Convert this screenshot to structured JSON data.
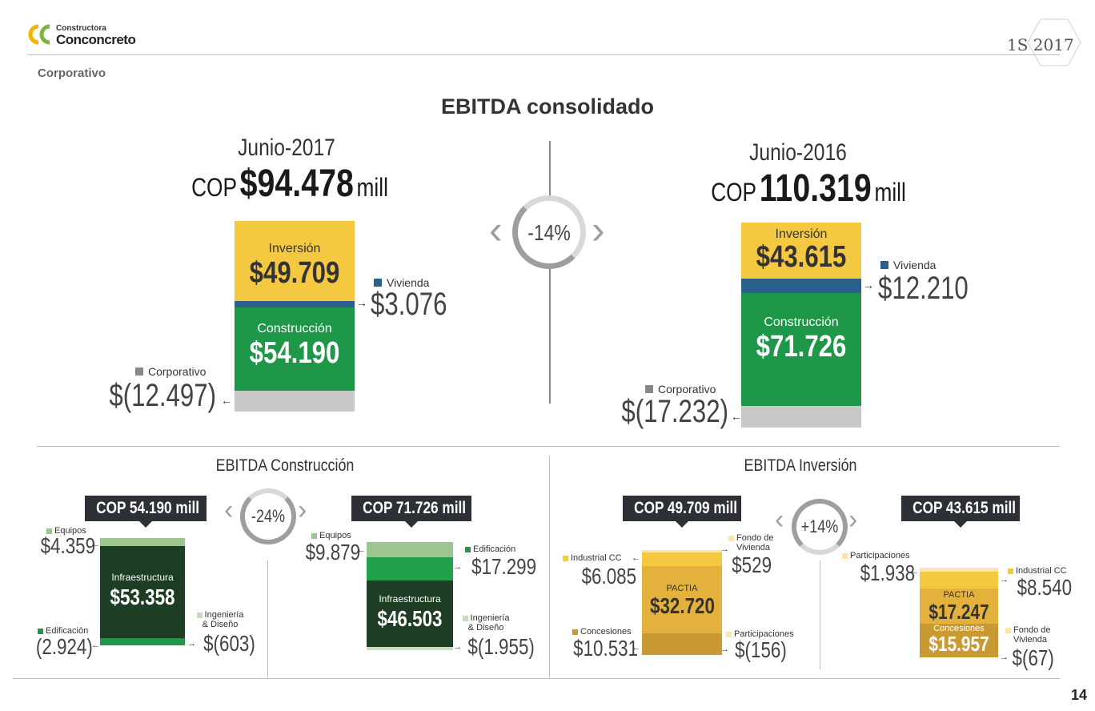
{
  "header": {
    "logo_line1": "Constructora",
    "logo_line2": "Conconcreto",
    "period": "1S 2017",
    "section": "Corporativo",
    "page_number": "14"
  },
  "title": "EBITDA consolidado",
  "colors": {
    "inversion": "#f5c842",
    "vivienda": "#2b5f8c",
    "construccion": "#1e9748",
    "corporativo": "#c8c8c8",
    "dark_green": "#1d3d24",
    "light_green": "#9cc590",
    "pactia": "#e3b13c",
    "concesiones": "#c99a34",
    "box_dark": "#2d3137",
    "ring": "#9e9e9e"
  },
  "top": {
    "left": {
      "period": "Junio-2017",
      "cop_prefix": "COP",
      "amount": "$94.478",
      "unit": "mill",
      "inversion_label": "Inversión",
      "inversion_value": "$49.709",
      "construccion_label": "Construcción",
      "construccion_value": "$54.190",
      "vivienda_label": "Vivienda",
      "vivienda_value": "$3.076",
      "corporativo_label": "Corporativo",
      "corporativo_value": "$(12.497)"
    },
    "change": "-14%",
    "right": {
      "period": "Junio-2016",
      "cop_prefix": "COP",
      "amount": "110.319",
      "unit": "mill",
      "inversion_label": "Inversión",
      "inversion_value": "$43.615",
      "construccion_label": "Construcción",
      "construccion_value": "$71.726",
      "vivienda_label": "Vivienda",
      "vivienda_value": "$12.210",
      "corporativo_label": "Corporativo",
      "corporativo_value": "$(17.232)"
    }
  },
  "construccion": {
    "title": "EBITDA Construcción",
    "change": "-24%",
    "left": {
      "box": "COP 54.190 mill",
      "equipos_label": "Equipos",
      "equipos_value": "$4.359",
      "infra_label": "Infraestructura",
      "infra_value": "$53.358",
      "edificacion_label": "Edificación",
      "edificacion_value": "(2.924)",
      "ingenieria_label1": "Ingeniería",
      "ingenieria_label2": "& Diseño",
      "ingenieria_value": "$(603)"
    },
    "right": {
      "box": "COP 71.726 mill",
      "equipos_label": "Equipos",
      "equipos_value": "$9.879",
      "edificacion_label": "Edificación",
      "edificacion_value": "$17.299",
      "infra_label": "Infraestructura",
      "infra_value": "$46.503",
      "ingenieria_label1": "Ingeniería",
      "ingenieria_label2": "& Diseño",
      "ingenieria_value": "$(1.955)"
    }
  },
  "inversion": {
    "title": "EBITDA Inversión",
    "change": "+14%",
    "left": {
      "box": "COP 49.709 mill",
      "industrial_label": "Industrial CC",
      "industrial_value": "$6.085",
      "fondo_label1": "Fondo de",
      "fondo_label2": "Vivienda",
      "fondo_value": "$529",
      "pactia_label": "PACTIA",
      "pactia_value": "$32.720",
      "concesiones_label": "Concesiones",
      "concesiones_value": "$10.531",
      "participaciones_label": "Participaciones",
      "participaciones_value": "$(156)"
    },
    "right": {
      "box": "COP 43.615 mill",
      "participaciones_label": "Participaciones",
      "participaciones_value": "$1.938",
      "industrial_label": "Industrial CC",
      "industrial_value": "$8.540",
      "pactia_label": "PACTIA",
      "pactia_value": "$17.247",
      "concesiones_label": "Concesiones",
      "concesiones_value": "$15.957",
      "fondo_label1": "Fondo de",
      "fondo_label2": "Vivienda",
      "fondo_value": "$(67)"
    }
  }
}
